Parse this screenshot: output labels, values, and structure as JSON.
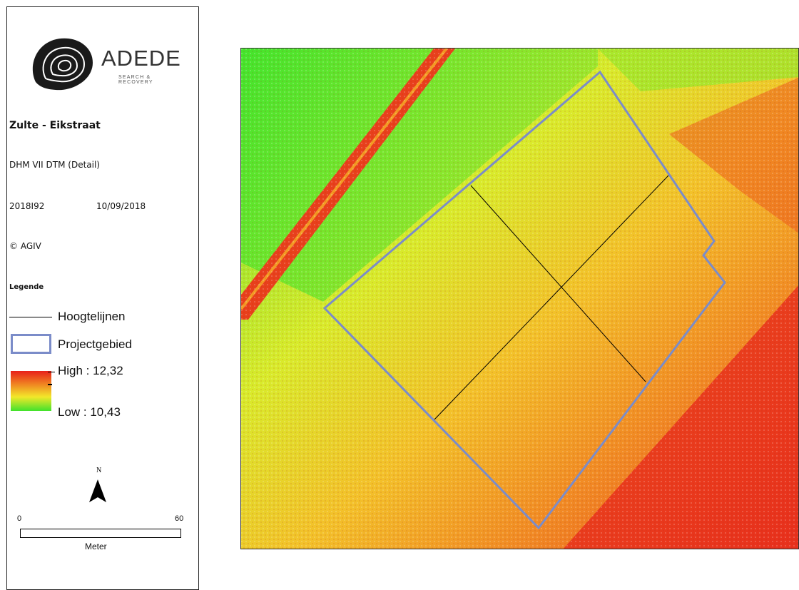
{
  "logo": {
    "brand": "ADEDE",
    "tagline": "SEARCH & RECOVERY"
  },
  "title": "Zulte - Eikstraat",
  "subtitle": "DHM VII DTM (Detail)",
  "project_code": "2018I92",
  "date": "10/09/2018",
  "copyright": "© AGIV",
  "legend": {
    "heading": "Legende",
    "contour_label": "Hoogtelijnen",
    "area_label": "Projectgebied",
    "high_label": "High : 12,32",
    "low_label": "Low : 10,43",
    "high_value": 12.32,
    "low_value": 10.43
  },
  "north": {
    "label": "N"
  },
  "scale": {
    "min_label": "0",
    "max_label": "60",
    "unit": "Meter"
  },
  "colors": {
    "high": "#e8201a",
    "mid_high": "#f08a22",
    "mid_low": "#f2e82a",
    "low": "#41e22c",
    "project_outline": "#7b8cc9",
    "contour": "#000000"
  }
}
